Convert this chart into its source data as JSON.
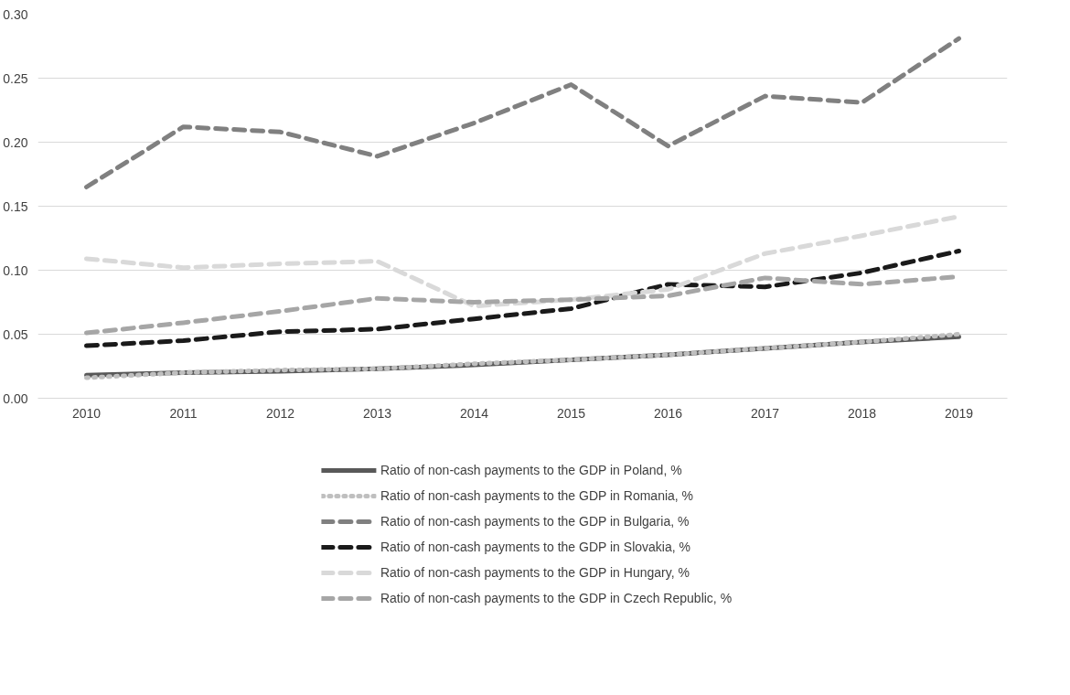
{
  "chart_data": {
    "type": "line",
    "categories": [
      "2010",
      "2011",
      "2012",
      "2013",
      "2014",
      "2015",
      "2016",
      "2017",
      "2018",
      "2019"
    ],
    "ylim": [
      0,
      0.3
    ],
    "yticks": [
      {
        "value": 0,
        "label": "0.00"
      },
      {
        "value": 0.05,
        "label": "0.05"
      },
      {
        "value": 0.1,
        "label": "0.10"
      },
      {
        "value": 0.15,
        "label": "0.15"
      },
      {
        "value": 0.2,
        "label": "0.20"
      },
      {
        "value": 0.25,
        "label": "0.25"
      },
      {
        "value": 0.3,
        "label": "0.30"
      }
    ],
    "grid": "y",
    "legend": "bottom",
    "series": [
      {
        "name": "Ratio of non-cash payments to the GDP in Poland, %",
        "color": "#595959",
        "line_style": "solid",
        "values": [
          0.018,
          0.02,
          0.021,
          0.023,
          0.026,
          0.03,
          0.034,
          0.039,
          0.044,
          0.048
        ]
      },
      {
        "name": "Ratio of non-cash payments to the GDP in Romania, %",
        "color": "#bfbfbf",
        "line_style": "dotted",
        "values": [
          0.016,
          0.02,
          0.022,
          0.023,
          0.027,
          0.03,
          0.034,
          0.039,
          0.044,
          0.05
        ]
      },
      {
        "name": "Ratio of non-cash payments to the GDP in Bulgaria, %",
        "color": "#808080",
        "line_style": "dashed",
        "values": [
          0.165,
          0.212,
          0.208,
          0.189,
          0.215,
          0.245,
          0.197,
          0.236,
          0.231,
          0.281
        ]
      },
      {
        "name": "Ratio of non-cash payments to the GDP in Slovakia, %",
        "color": "#1a1a1a",
        "line_style": "dashed",
        "values": [
          0.041,
          0.045,
          0.052,
          0.054,
          0.062,
          0.07,
          0.089,
          0.087,
          0.098,
          0.115
        ]
      },
      {
        "name": "Ratio of non-cash payments to the GDP in Hungary, %",
        "color": "#d9d9d9",
        "line_style": "dashed",
        "values": [
          0.109,
          0.102,
          0.105,
          0.107,
          0.072,
          0.077,
          0.085,
          0.113,
          0.127,
          0.142
        ]
      },
      {
        "name": "Ratio of non-cash payments to the GDP in Czech Republic, %",
        "color": "#a6a6a6",
        "line_style": "dashed",
        "values": [
          0.051,
          0.059,
          0.068,
          0.078,
          0.075,
          0.077,
          0.08,
          0.094,
          0.089,
          0.095
        ]
      }
    ]
  }
}
